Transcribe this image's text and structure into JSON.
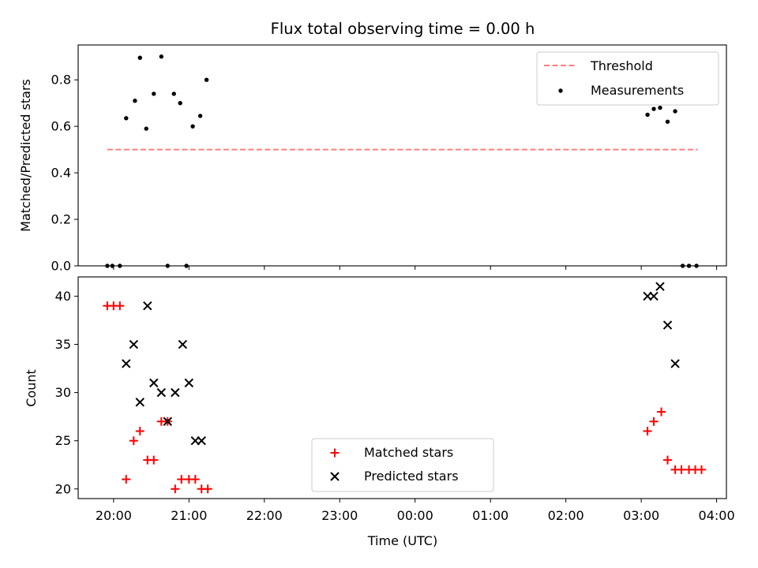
{
  "chart_data": [
    {
      "type": "scatter",
      "title": "Flux total observing time = 0.00 h",
      "ylabel": "Matched/Predicted stars",
      "xlabel": "",
      "ylim": [
        0,
        0.95
      ],
      "yticks": [
        "0.0",
        "0.2",
        "0.4",
        "0.6",
        "0.8"
      ],
      "ytick_values": [
        0,
        0.2,
        0.4,
        0.6,
        0.8
      ],
      "legend_position": "upper-right",
      "threshold": {
        "name": "Threshold",
        "value": 0.5,
        "x_range": [
          "19:55",
          "03:45"
        ],
        "color": "#ff7f7f",
        "style": "dashed"
      },
      "series": [
        {
          "name": "Measurements",
          "color": "#000000",
          "marker": "dot",
          "x": [
            "19:55",
            "19:59",
            "20:05",
            "20:10",
            "20:17",
            "20:21",
            "20:26",
            "20:32",
            "20:38",
            "20:43",
            "20:48",
            "20:53",
            "20:58",
            "21:03",
            "21:09",
            "21:14",
            "03:05",
            "03:10",
            "03:15",
            "03:21",
            "03:27",
            "03:33",
            "03:38",
            "03:44"
          ],
          "y": [
            0.0,
            0.0,
            0.0,
            0.635,
            0.71,
            0.895,
            0.59,
            0.74,
            0.9,
            0.0,
            0.74,
            0.7,
            0.0,
            0.6,
            0.645,
            0.8,
            0.65,
            0.675,
            0.68,
            0.62,
            0.665,
            0.0,
            0.0,
            0.0
          ]
        }
      ]
    },
    {
      "type": "scatter",
      "title": "",
      "ylabel": "Count",
      "xlabel": "Time (UTC)",
      "ylim": [
        19,
        42
      ],
      "yticks": [
        "20",
        "25",
        "30",
        "35",
        "40"
      ],
      "ytick_values": [
        20,
        25,
        30,
        35,
        40
      ],
      "legend_position": "lower-center",
      "xticks": [
        "20:00",
        "21:00",
        "22:00",
        "23:00",
        "00:00",
        "01:00",
        "02:00",
        "03:00",
        "04:00"
      ],
      "series": [
        {
          "name": "Matched stars",
          "color": "#ff0000",
          "marker": "plus",
          "x": [
            "19:55",
            "20:00",
            "20:05",
            "20:10",
            "20:16",
            "20:21",
            "20:27",
            "20:32",
            "20:38",
            "20:43",
            "20:49",
            "20:54",
            "21:00",
            "21:05",
            "21:10",
            "21:15",
            "03:05",
            "03:10",
            "03:16",
            "03:21",
            "03:27",
            "03:32",
            "03:38",
            "03:43",
            "03:48"
          ],
          "y": [
            39,
            39,
            39,
            21,
            25,
            26,
            23,
            23,
            27,
            27,
            20,
            21,
            21,
            21,
            20,
            20,
            26,
            27,
            28,
            23,
            22,
            22,
            22,
            22,
            22
          ]
        },
        {
          "name": "Predicted stars",
          "color": "#000000",
          "marker": "x",
          "x": [
            "20:10",
            "20:16",
            "20:21",
            "20:27",
            "20:32",
            "20:38",
            "20:43",
            "20:49",
            "20:55",
            "21:00",
            "21:05",
            "21:10",
            "03:05",
            "03:10",
            "03:15",
            "03:21",
            "03:27"
          ],
          "y": [
            33,
            35,
            29,
            39,
            31,
            30,
            27,
            30,
            35,
            31,
            25,
            25,
            40,
            40,
            41,
            37,
            33
          ]
        }
      ]
    }
  ]
}
